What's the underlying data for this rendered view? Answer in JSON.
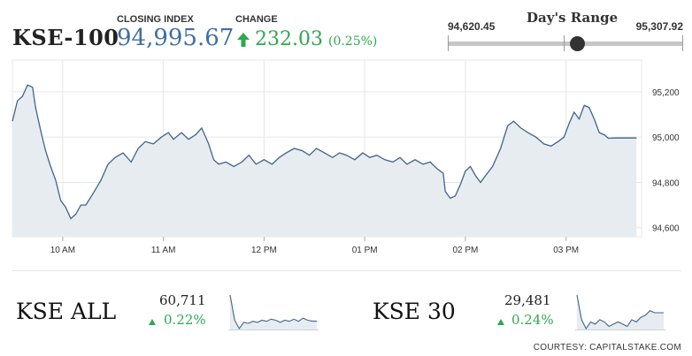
{
  "header": {
    "index_name": "KSE-100",
    "closing_label": "CLOSING INDEX",
    "closing_value": "94,995.67",
    "change_label": "CHANGE",
    "change_value": "232.03",
    "change_pct": "(0.25%)",
    "change_icon": "arrow-up-icon",
    "up_color": "#2fa84f",
    "value_color": "#3f6ea3"
  },
  "days_range": {
    "title": "Day's Range",
    "low": "94,620.45",
    "high": "95,307.92",
    "position_fraction": 0.55
  },
  "chart_data": {
    "type": "area",
    "title": "",
    "xlabel": "",
    "ylabel": "",
    "x_tick_labels": [
      "10 AM",
      "11 AM",
      "12 PM",
      "01 PM",
      "02 PM",
      "03 PM"
    ],
    "y_tick_labels": [
      "94,600",
      "94,800",
      "95,000",
      "95,200"
    ],
    "ylim": [
      94560,
      95340
    ],
    "x_range_hours": [
      9.5,
      15.75
    ],
    "grid": true,
    "line_color": "#41638c",
    "fill_color": "#e7ecf1",
    "series": [
      {
        "values": [
          [
            9.5,
            95070
          ],
          [
            9.55,
            95160
          ],
          [
            9.6,
            95180
          ],
          [
            9.65,
            95230
          ],
          [
            9.7,
            95220
          ],
          [
            9.73,
            95130
          ],
          [
            9.78,
            95030
          ],
          [
            9.83,
            94940
          ],
          [
            9.88,
            94870
          ],
          [
            9.93,
            94810
          ],
          [
            9.98,
            94720
          ],
          [
            10.03,
            94690
          ],
          [
            10.08,
            94640
          ],
          [
            10.13,
            94660
          ],
          [
            10.18,
            94700
          ],
          [
            10.23,
            94700
          ],
          [
            10.3,
            94750
          ],
          [
            10.38,
            94810
          ],
          [
            10.45,
            94880
          ],
          [
            10.52,
            94910
          ],
          [
            10.6,
            94930
          ],
          [
            10.68,
            94890
          ],
          [
            10.75,
            94950
          ],
          [
            10.82,
            94980
          ],
          [
            10.9,
            94970
          ],
          [
            10.98,
            95000
          ],
          [
            11.05,
            95020
          ],
          [
            11.1,
            94990
          ],
          [
            11.18,
            95020
          ],
          [
            11.25,
            94990
          ],
          [
            11.32,
            95010
          ],
          [
            11.38,
            95040
          ],
          [
            11.45,
            94970
          ],
          [
            11.5,
            94900
          ],
          [
            11.55,
            94880
          ],
          [
            11.62,
            94890
          ],
          [
            11.7,
            94870
          ],
          [
            11.78,
            94890
          ],
          [
            11.85,
            94920
          ],
          [
            11.92,
            94880
          ],
          [
            12.0,
            94900
          ],
          [
            12.08,
            94880
          ],
          [
            12.15,
            94910
          ],
          [
            12.22,
            94930
          ],
          [
            12.3,
            94950
          ],
          [
            12.38,
            94940
          ],
          [
            12.45,
            94920
          ],
          [
            12.52,
            94950
          ],
          [
            12.6,
            94930
          ],
          [
            12.68,
            94910
          ],
          [
            12.75,
            94930
          ],
          [
            12.82,
            94920
          ],
          [
            12.9,
            94900
          ],
          [
            12.98,
            94930
          ],
          [
            13.05,
            94910
          ],
          [
            13.12,
            94920
          ],
          [
            13.2,
            94900
          ],
          [
            13.28,
            94890
          ],
          [
            13.35,
            94910
          ],
          [
            13.42,
            94880
          ],
          [
            13.5,
            94900
          ],
          [
            13.58,
            94880
          ],
          [
            13.65,
            94890
          ],
          [
            13.72,
            94860
          ],
          [
            13.78,
            94840
          ],
          [
            13.8,
            94760
          ],
          [
            13.85,
            94730
          ],
          [
            13.9,
            94740
          ],
          [
            13.95,
            94790
          ],
          [
            14.0,
            94850
          ],
          [
            14.05,
            94870
          ],
          [
            14.1,
            94830
          ],
          [
            14.15,
            94800
          ],
          [
            14.2,
            94830
          ],
          [
            14.27,
            94870
          ],
          [
            14.35,
            94950
          ],
          [
            14.42,
            95050
          ],
          [
            14.48,
            95070
          ],
          [
            14.55,
            95040
          ],
          [
            14.62,
            95020
          ],
          [
            14.7,
            95000
          ],
          [
            14.78,
            94970
          ],
          [
            14.85,
            94960
          ],
          [
            14.92,
            94980
          ],
          [
            14.98,
            95000
          ],
          [
            15.03,
            95060
          ],
          [
            15.08,
            95110
          ],
          [
            15.13,
            95080
          ],
          [
            15.18,
            95140
          ],
          [
            15.23,
            95130
          ],
          [
            15.28,
            95080
          ],
          [
            15.33,
            95020
          ],
          [
            15.38,
            95010
          ],
          [
            15.42,
            94995
          ],
          [
            15.5,
            94996
          ],
          [
            15.6,
            94996
          ],
          [
            15.7,
            94996
          ]
        ]
      }
    ]
  },
  "mini_indices": [
    {
      "name": "KSE ALL",
      "value": "60,711",
      "change": "0.22%",
      "chart_data": {
        "type": "area",
        "values": [
          60960,
          60720,
          60640,
          60700,
          60690,
          60710,
          60700,
          60720,
          60710,
          60730,
          60720,
          60700,
          60720,
          60710,
          60730,
          60710,
          60740,
          60720,
          60711,
          60711
        ]
      }
    },
    {
      "name": "KSE 30",
      "value": "29,481",
      "change": "0.24%",
      "chart_data": {
        "type": "area",
        "values": [
          29560,
          29450,
          29410,
          29440,
          29430,
          29450,
          29440,
          29420,
          29430,
          29440,
          29430,
          29420,
          29450,
          29440,
          29460,
          29470,
          29490,
          29481,
          29481,
          29481
        ]
      }
    }
  ],
  "footer": {
    "courtesy": "COURTESY: CAPITALSTAKE.COM"
  }
}
